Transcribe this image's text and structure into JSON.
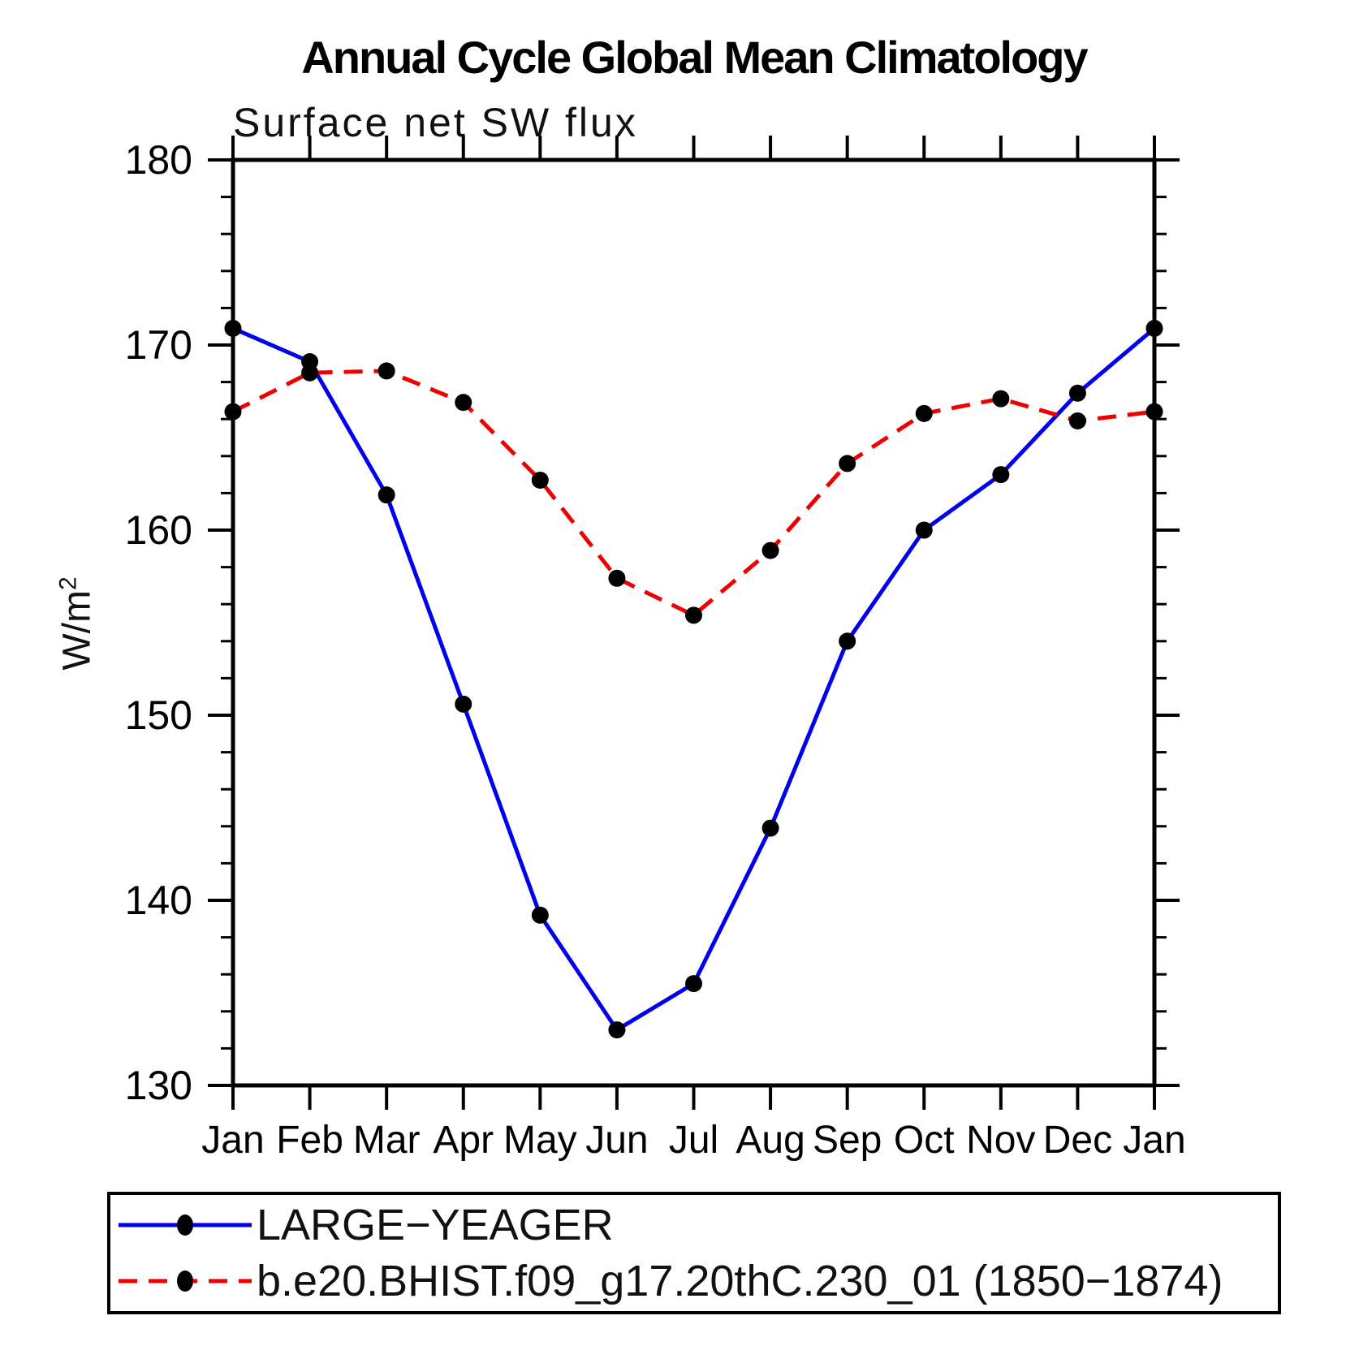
{
  "chart_data": {
    "type": "line",
    "title": "Annual Cycle Global Mean Climatology",
    "subtitle": "Surface net SW flux",
    "ylabel": "W/m2",
    "ylabel_base": "W/m",
    "ylabel_sup": "2",
    "categories": [
      "Jan",
      "Feb",
      "Mar",
      "Apr",
      "May",
      "Jun",
      "Jul",
      "Aug",
      "Sep",
      "Oct",
      "Nov",
      "Dec",
      "Jan"
    ],
    "ylim": [
      130,
      180
    ],
    "ytick_major_step": 10,
    "ytick_minor_step": 2,
    "grid": false,
    "legend_position": "bottom",
    "marker_color": "#000000",
    "series": [
      {
        "name": "LARGE−YEAGER",
        "color": "#0000ee",
        "line_style": "solid",
        "dasharray": "none",
        "marker": "circle",
        "values": [
          170.9,
          169.1,
          161.9,
          150.6,
          139.2,
          133.0,
          135.5,
          143.9,
          154.0,
          160.0,
          163.0,
          167.4,
          170.9
        ]
      },
      {
        "name": "b.e20.BHIST.f09_g17.20thC.230_01 (1850−1874)",
        "color": "#ee0000",
        "line_style": "dashed",
        "dasharray": "23 14",
        "marker": "circle",
        "values": [
          166.4,
          168.5,
          168.6,
          166.9,
          162.7,
          157.4,
          155.4,
          158.9,
          163.6,
          166.3,
          167.1,
          165.9,
          166.4
        ]
      }
    ]
  }
}
